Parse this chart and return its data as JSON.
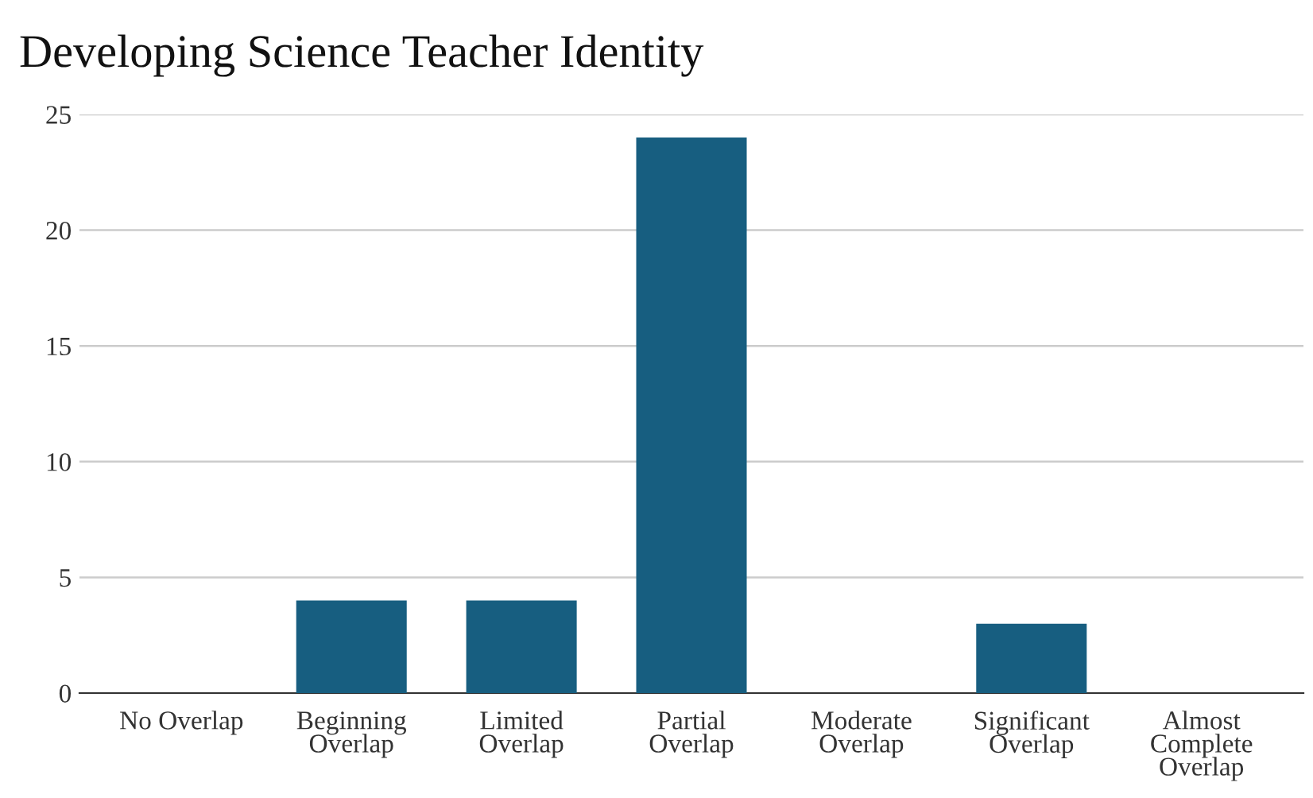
{
  "chart_data": {
    "type": "bar",
    "title": "Developing Science Teacher Identity",
    "categories": [
      "No Overlap",
      "Beginning Overlap",
      "Limited Overlap",
      "Partial Overlap",
      "Moderate Overlap",
      "Significant Overlap",
      "Almost Complete Overlap"
    ],
    "values": [
      0,
      4,
      4,
      24,
      0,
      3,
      0
    ],
    "color": "#175e80",
    "ylim": [
      0,
      25
    ],
    "yticks": [
      0,
      5,
      10,
      15,
      20,
      25
    ],
    "grid": "y",
    "legend": false
  }
}
